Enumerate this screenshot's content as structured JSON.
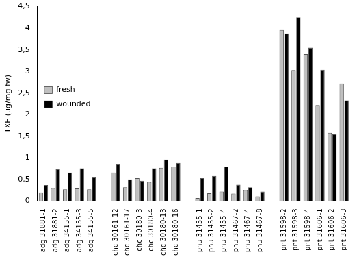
{
  "chart_data": {
    "type": "bar",
    "y_label": "TXE (µg/mg fw)",
    "categories": [
      "adg 31881-1",
      "adg 31881-2",
      "adg 34155-1",
      "adg 34155-3",
      "adg 34155-5",
      null,
      "chc 30161-12",
      "chc 30161-17",
      "chc 30180-3",
      "chc 30180-4",
      "chc 30180-13",
      "chc 30180-16",
      null,
      "phu 31455-1",
      "phu 31455-2",
      "phu 31455-4",
      "phu 31467-2",
      "phu 31467-4",
      "phu 31467-8",
      null,
      "pnt 31598-2",
      "pnt 31598-3",
      "pnt 31598-4",
      "pnt 31606-1",
      "pnt 31606-2",
      "pnt 31606-3"
    ],
    "series": [
      {
        "name": "fresh",
        "color": "#c0c0c0",
        "values": [
          0.2,
          0.3,
          0.27,
          0.29,
          0.27,
          null,
          0.66,
          0.32,
          0.53,
          0.44,
          0.77,
          0.8,
          null,
          0.07,
          0.18,
          0.22,
          0.17,
          0.25,
          0.11,
          null,
          3.96,
          3.03,
          3.4,
          2.22,
          1.58,
          2.72
        ]
      },
      {
        "name": "wounded",
        "color": "#000000",
        "values": [
          0.37,
          0.74,
          0.66,
          0.76,
          0.55,
          null,
          0.85,
          0.5,
          0.47,
          0.76,
          0.96,
          0.88,
          null,
          0.53,
          0.58,
          0.8,
          0.38,
          0.32,
          0.22,
          null,
          3.88,
          4.25,
          3.55,
          3.04,
          1.55,
          2.33
        ]
      }
    ],
    "ylim": [
      0,
      4.5
    ],
    "yticks": [
      0,
      {
        "value": 0.5,
        "label": "0,5"
      },
      1,
      {
        "value": 1.5,
        "label": "1,5"
      },
      2,
      {
        "value": 2.5,
        "label": "2,5"
      },
      3,
      {
        "value": 3.5,
        "label": "3,5"
      },
      4,
      {
        "value": 4.5,
        "label": "4,5"
      }
    ],
    "grid": false,
    "legend": "left"
  }
}
